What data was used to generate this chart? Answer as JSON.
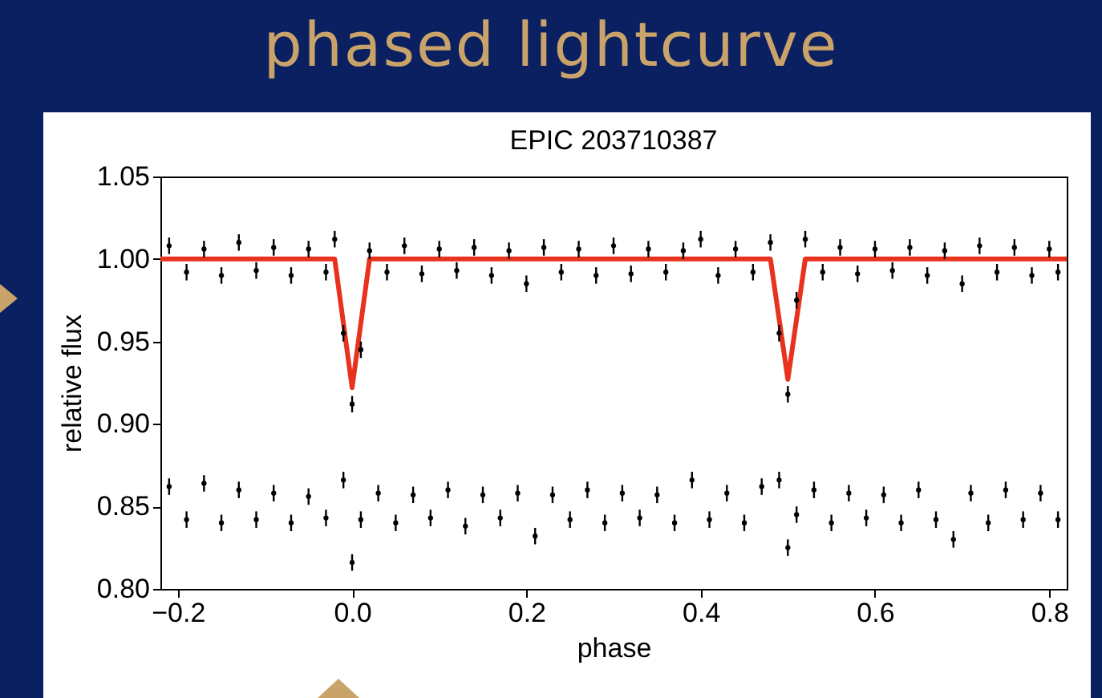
{
  "chart_data": {
    "type": "scatter",
    "title": "phased lightcurve",
    "subtitle": "EPIC 203710387",
    "xlabel": "phase",
    "ylabel": "relative flux",
    "xlim": [
      -0.22,
      0.82
    ],
    "ylim": [
      0.8,
      1.05
    ],
    "xticks": [
      {
        "value": -0.2,
        "label": "−0.2"
      },
      {
        "value": 0,
        "label": "0.0"
      },
      0.2,
      0.4,
      0.6,
      0.8
    ],
    "yticks": [
      {
        "value": 0.8,
        "label": "0.80"
      },
      0.85,
      {
        "value": 0.9,
        "label": "0.90"
      },
      0.95,
      {
        "value": 1,
        "label": "1.00"
      },
      1.05
    ],
    "grid": false,
    "marker": "circle",
    "series": [
      {
        "color": "#000000",
        "x": [
          -0.21,
          -0.19,
          -0.17,
          -0.15,
          -0.13,
          -0.11,
          -0.09,
          -0.07,
          -0.05,
          -0.03,
          -0.02,
          -0.01,
          0,
          0.01,
          0.02,
          0.04,
          0.06,
          0.08,
          0.1,
          0.12,
          0.14,
          0.16,
          0.18,
          0.2,
          0.22,
          0.24,
          0.26,
          0.28,
          0.3,
          0.32,
          0.34,
          0.36,
          0.38,
          0.4,
          0.42,
          0.44,
          0.46,
          0.48,
          0.49,
          0.5,
          0.51,
          0.52,
          0.54,
          0.56,
          0.58,
          0.6,
          0.62,
          0.64,
          0.66,
          0.68,
          0.7,
          0.72,
          0.74,
          0.76,
          0.78,
          0.8,
          0.81
        ],
        "values": [
          1.008,
          0.992,
          1.006,
          0.99,
          1.01,
          0.993,
          1.007,
          0.99,
          1.006,
          0.992,
          1.012,
          0.955,
          0.912,
          0.945,
          1.005,
          0.992,
          1.008,
          0.991,
          1.006,
          0.993,
          1.007,
          0.99,
          1.005,
          0.985,
          1.007,
          0.992,
          1.006,
          0.99,
          1.008,
          0.991,
          1.006,
          0.992,
          1.005,
          1.012,
          0.99,
          1.006,
          0.992,
          1.01,
          0.955,
          0.918,
          0.975,
          1.012,
          0.992,
          1.007,
          0.991,
          1.006,
          0.993,
          1.007,
          0.99,
          1.005,
          0.985,
          1.008,
          0.992,
          1.007,
          0.99,
          1.006,
          0.992
        ],
        "errors": [
          0.005,
          0.005,
          0.005,
          0.005,
          0.005,
          0.005,
          0.005,
          0.005,
          0.005,
          0.005,
          0.005,
          0.005,
          0.005,
          0.005,
          0.005,
          0.005,
          0.005,
          0.005,
          0.005,
          0.005,
          0.005,
          0.005,
          0.005,
          0.005,
          0.005,
          0.005,
          0.005,
          0.005,
          0.005,
          0.005,
          0.005,
          0.005,
          0.005,
          0.005,
          0.005,
          0.005,
          0.005,
          0.005,
          0.005,
          0.005,
          0.005,
          0.005,
          0.005,
          0.005,
          0.005,
          0.005,
          0.005,
          0.005,
          0.005,
          0.005,
          0.005,
          0.005,
          0.005,
          0.005,
          0.005,
          0.005,
          0.005
        ]
      },
      {
        "color": "#000000",
        "x": [
          -0.21,
          -0.19,
          -0.17,
          -0.15,
          -0.13,
          -0.11,
          -0.09,
          -0.07,
          -0.05,
          -0.03,
          -0.01,
          0,
          0.01,
          0.03,
          0.05,
          0.07,
          0.09,
          0.11,
          0.13,
          0.15,
          0.17,
          0.19,
          0.21,
          0.23,
          0.25,
          0.27,
          0.29,
          0.31,
          0.33,
          0.35,
          0.37,
          0.39,
          0.41,
          0.43,
          0.45,
          0.47,
          0.49,
          0.5,
          0.51,
          0.53,
          0.55,
          0.57,
          0.59,
          0.61,
          0.63,
          0.65,
          0.67,
          0.69,
          0.71,
          0.73,
          0.75,
          0.77,
          0.79,
          0.81
        ],
        "values": [
          0.862,
          0.842,
          0.864,
          0.84,
          0.86,
          0.842,
          0.858,
          0.84,
          0.856,
          0.843,
          0.866,
          0.816,
          0.842,
          0.858,
          0.84,
          0.857,
          0.843,
          0.86,
          0.838,
          0.857,
          0.843,
          0.858,
          0.832,
          0.857,
          0.842,
          0.86,
          0.84,
          0.858,
          0.843,
          0.857,
          0.84,
          0.866,
          0.842,
          0.858,
          0.84,
          0.862,
          0.866,
          0.825,
          0.845,
          0.86,
          0.84,
          0.858,
          0.843,
          0.857,
          0.84,
          0.86,
          0.842,
          0.83,
          0.858,
          0.84,
          0.86,
          0.842,
          0.858,
          0.842
        ],
        "errors": [
          0.005,
          0.005,
          0.005,
          0.005,
          0.005,
          0.005,
          0.005,
          0.005,
          0.005,
          0.005,
          0.005,
          0.005,
          0.005,
          0.005,
          0.005,
          0.005,
          0.005,
          0.005,
          0.005,
          0.005,
          0.005,
          0.005,
          0.005,
          0.005,
          0.005,
          0.005,
          0.005,
          0.005,
          0.005,
          0.005,
          0.005,
          0.005,
          0.005,
          0.005,
          0.005,
          0.005,
          0.005,
          0.005,
          0.005,
          0.005,
          0.005,
          0.005,
          0.005,
          0.005,
          0.005,
          0.005,
          0.005,
          0.005,
          0.005,
          0.005,
          0.005,
          0.005,
          0.005,
          0.005
        ]
      },
      {
        "type": "line",
        "marker": "none",
        "color": "#e8321e",
        "x": [
          -0.22,
          -0.02,
          0,
          0.02,
          0.48,
          0.5,
          0.52,
          0.82
        ],
        "values": [
          1,
          1,
          0.922,
          1,
          1,
          0.927,
          1,
          1
        ]
      }
    ]
  }
}
